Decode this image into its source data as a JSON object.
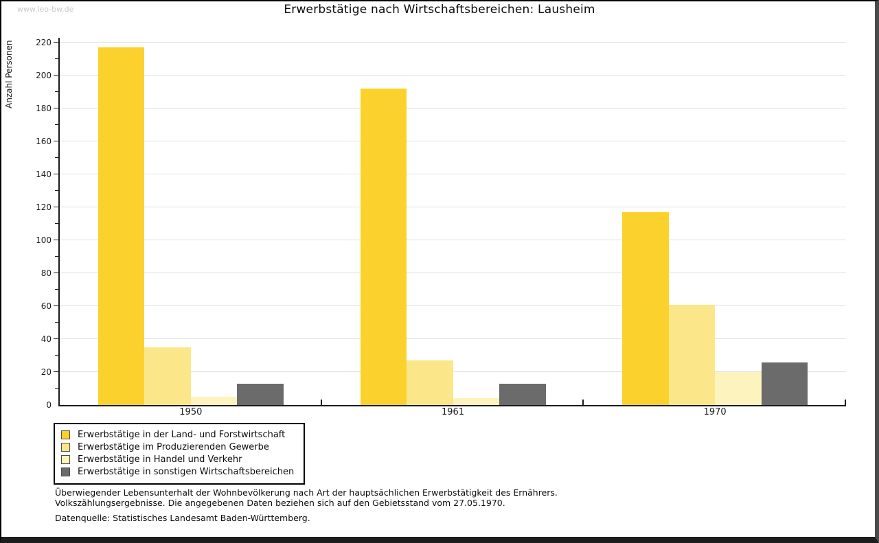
{
  "page": {
    "watermark": "www.leo-bw.de",
    "title": "Erwerbstätige nach Wirtschaftsbereichen: Lausheim"
  },
  "chart_data": {
    "type": "bar",
    "title": "Erwerbstätige nach Wirtschaftsbereichen: Lausheim",
    "xlabel": "",
    "ylabel": "Anzahl Personen",
    "categories": [
      "1950",
      "1961",
      "1970"
    ],
    "series": [
      {
        "name": "Erwerbstätige in der Land- und Forstwirtschaft",
        "color": "#FBD22D",
        "values": [
          217,
          192,
          117
        ]
      },
      {
        "name": "Erwerbstätige im Produzierenden Gewerbe",
        "color": "#FBE78A",
        "values": [
          35,
          27,
          61
        ]
      },
      {
        "name": "Erwerbstätige in Handel und Verkehr",
        "color": "#FCF3BE",
        "values": [
          5,
          4,
          20
        ]
      },
      {
        "name": "Erwerbstätige in sonstigen Wirtschaftsbereichen",
        "color": "#6B6B6B",
        "values": [
          13,
          13,
          26
        ]
      }
    ],
    "ylim": [
      0,
      220
    ],
    "ytick_step": 20,
    "yminor_step": 10,
    "grid": true,
    "legend_position": "bottom-left",
    "colors": {
      "axis": "#1A1A1A",
      "gridline": "#DFDFDF"
    }
  },
  "footer": {
    "note_line1": "Überwiegender Lebensunterhalt der Wohnbevölkerung nach Art der hauptsächlichen Erwerbstätigkeit des Ernährers.",
    "note_line2": "Volkszählungsergebnisse. Die angegebenen Daten beziehen sich auf den Gebietsstand vom 27.05.1970.",
    "source": "Datenquelle: Statistisches Landesamt Baden-Württemberg."
  }
}
